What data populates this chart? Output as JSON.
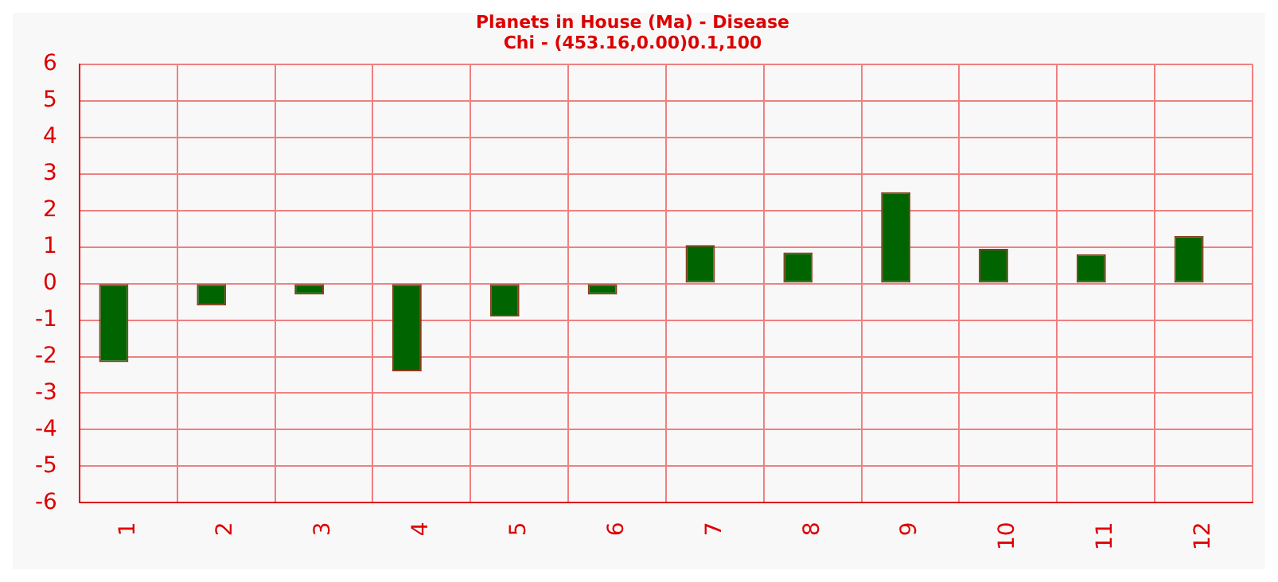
{
  "chart_data": {
    "type": "bar",
    "title": "Planets in House (Ma) - Disease",
    "subtitle": "Chi - (453.16,0.00)0.1,100",
    "categories": [
      "1",
      "2",
      "3",
      "4",
      "5",
      "6",
      "7",
      "8",
      "9",
      "10",
      "11",
      "12"
    ],
    "series": [
      {
        "color": "#006400",
        "values": [
          -2.15,
          -0.6,
          -0.3,
          -2.4,
          -0.9,
          -0.3,
          1.05,
          0.85,
          2.5,
          0.95,
          0.8,
          1.3
        ]
      },
      {
        "color": "#cc0000",
        "values": [
          0,
          0,
          0,
          0,
          0,
          0,
          0,
          0,
          0,
          0,
          0,
          0
        ]
      }
    ],
    "ylim": [
      -6,
      6
    ],
    "yticks": [
      -6,
      -5,
      -4,
      -3,
      -2,
      -1,
      0,
      1,
      2,
      3,
      4,
      5,
      6
    ],
    "grid": true,
    "legend": false
  }
}
